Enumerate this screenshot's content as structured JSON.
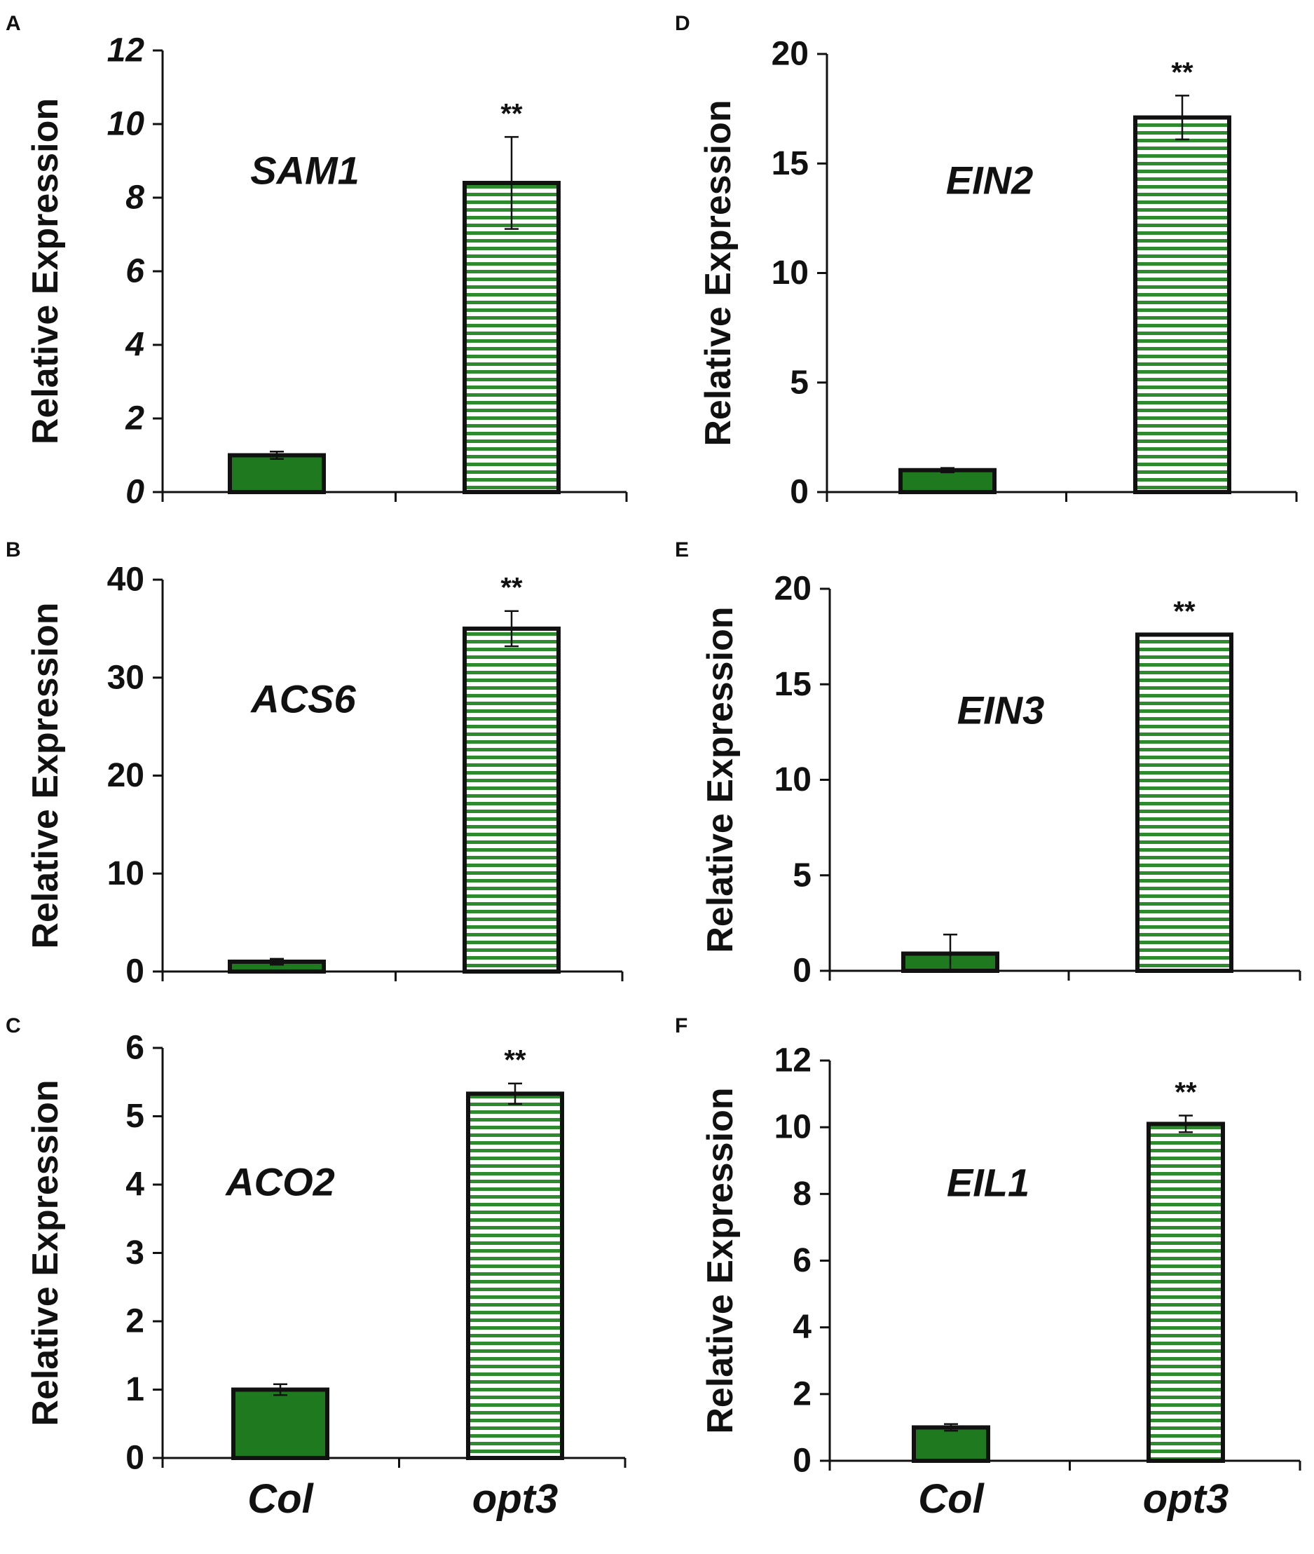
{
  "colors": {
    "solid": "#1f7a1f",
    "stripe": "#2d8a2d",
    "outline": "#111111"
  },
  "chart_data": [
    {
      "panel": "A",
      "type": "bar",
      "gene": "SAM1",
      "ylabel": "Relative  Expression",
      "categories": [
        "Col",
        "opt3"
      ],
      "values": [
        1.0,
        8.4
      ],
      "errors": [
        0.1,
        1.25
      ],
      "significance": [
        "",
        "**"
      ],
      "ylim": [
        0,
        12
      ],
      "yticks": [
        "0",
        "2",
        "4",
        "6",
        "8",
        "10",
        "12"
      ],
      "tick_style": "italic",
      "show_xlabels": false
    },
    {
      "panel": "B",
      "type": "bar",
      "gene": "ACS6",
      "ylabel": "Relative  Expression",
      "categories": [
        "Col",
        "opt3"
      ],
      "values": [
        1.0,
        35.0
      ],
      "errors": [
        0.3,
        1.8
      ],
      "significance": [
        "",
        "**"
      ],
      "ylim": [
        0,
        40
      ],
      "yticks": [
        "0",
        "10",
        "20",
        "30",
        "40"
      ],
      "tick_style": "normal",
      "show_xlabels": false
    },
    {
      "panel": "C",
      "type": "bar",
      "gene": "ACO2",
      "ylabel": "Relative  Expression",
      "categories": [
        "Col",
        "opt3"
      ],
      "values": [
        1.0,
        5.33
      ],
      "errors": [
        0.08,
        0.15
      ],
      "significance": [
        "",
        "**"
      ],
      "ylim": [
        0,
        6
      ],
      "yticks": [
        "0",
        "1",
        "2",
        "3",
        "4",
        "5",
        "6"
      ],
      "tick_style": "normal",
      "show_xlabels": true
    },
    {
      "panel": "D",
      "type": "bar",
      "gene": "EIN2",
      "ylabel": "Relative  Expression",
      "categories": [
        "Col",
        "opt3"
      ],
      "values": [
        1.0,
        17.1
      ],
      "errors": [
        0.1,
        1.0
      ],
      "significance": [
        "",
        "**"
      ],
      "ylim": [
        0,
        20
      ],
      "yticks": [
        "0",
        "5",
        "10",
        "15",
        "20"
      ],
      "tick_style": "normal",
      "show_xlabels": false
    },
    {
      "panel": "E",
      "type": "bar",
      "gene": "EIN3",
      "ylabel": "Relative  Expression",
      "categories": [
        "Col",
        "opt3"
      ],
      "values": [
        0.9,
        17.6
      ],
      "errors": [
        1.0,
        0.0
      ],
      "significance": [
        "",
        "**"
      ],
      "ylim": [
        0,
        20
      ],
      "yticks": [
        "0",
        "5",
        "10",
        "15",
        "20"
      ],
      "tick_style": "normal",
      "show_xlabels": false
    },
    {
      "panel": "F",
      "type": "bar",
      "gene": "EIL1",
      "ylabel": "Relative  Expression",
      "categories": [
        "Col",
        "opt3"
      ],
      "values": [
        1.0,
        10.1
      ],
      "errors": [
        0.1,
        0.25
      ],
      "significance": [
        "",
        "**"
      ],
      "ylim": [
        0,
        12
      ],
      "yticks": [
        "0",
        "2",
        "4",
        "6",
        "8",
        "10",
        "12"
      ],
      "tick_style": "normal",
      "show_xlabels": true
    }
  ]
}
